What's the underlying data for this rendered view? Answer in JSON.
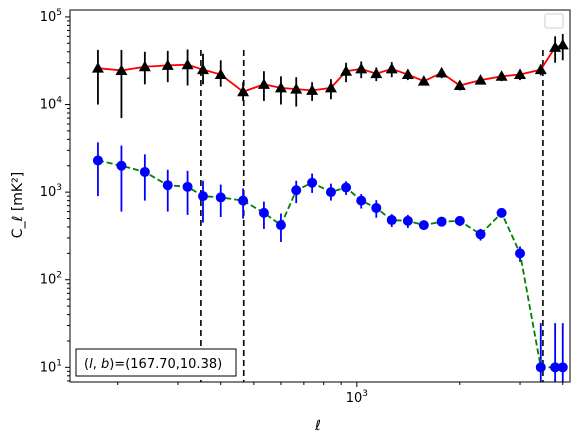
{
  "chart_data": {
    "type": "line",
    "title": "",
    "xlabel": "ℓ",
    "ylabel": "C_ℓ [mK²]",
    "xscale": "log",
    "yscale": "log",
    "xlim": [
      145,
      4200
    ],
    "ylim": [
      6.8,
      120000
    ],
    "x_tick_labels": [
      {
        "value": 1000,
        "base": "10",
        "exp": "3"
      }
    ],
    "y_tick_labels": [
      {
        "value": 10,
        "base": "10",
        "exp": "1"
      },
      {
        "value": 100,
        "base": "10",
        "exp": "2"
      },
      {
        "value": 1000,
        "base": "10",
        "exp": "3"
      },
      {
        "value": 10000,
        "base": "10",
        "exp": "4"
      },
      {
        "value": 100000,
        "base": "10",
        "exp": "5"
      }
    ],
    "vertical_lines": [
      350,
      467,
      3500
    ],
    "grid": false,
    "legend": "top-right (empty)",
    "annotation": "(l, b)=(167.70,10.38)",
    "series": [
      {
        "marker": "triangle",
        "color": "#d62728",
        "line_color": "#ff0000",
        "marker_color": "#000000",
        "error_color": "#000000",
        "linestyle": "solid",
        "x": [
          175,
          205,
          240,
          280,
          320,
          355,
          400,
          465,
          535,
          600,
          665,
          740,
          840,
          930,
          1030,
          1140,
          1265,
          1410,
          1570,
          1770,
          2000,
          2300,
          2650,
          3000,
          3450,
          3800,
          4000
        ],
        "y": [
          26000,
          24500,
          27000,
          28000,
          28500,
          25000,
          22000,
          14000,
          17000,
          15500,
          15000,
          14500,
          15500,
          24000,
          25500,
          22500,
          25500,
          22000,
          18500,
          23000,
          16500,
          19000,
          21000,
          22000,
          25000,
          45000,
          48000
        ],
        "y_err_low": [
          16000,
          17500,
          10000,
          10000,
          12000,
          8000,
          6000,
          3000,
          6000,
          5500,
          5500,
          3500,
          4000,
          6000,
          5500,
          4000,
          5000,
          3000,
          2000,
          3000,
          2000,
          2000,
          2500,
          3000,
          3500,
          15000,
          16000
        ],
        "y_err_high": [
          16000,
          17500,
          13000,
          13000,
          14000,
          13000,
          10000,
          4000,
          7000,
          5500,
          5500,
          3500,
          4000,
          6000,
          5500,
          4000,
          5000,
          3000,
          2000,
          3000,
          2000,
          2000,
          2500,
          3000,
          3500,
          15000,
          16000
        ]
      },
      {
        "marker": "circle",
        "line_color": "#008000",
        "marker_color": "#0000ff",
        "error_color": "#0000ff",
        "linestyle": "dashed",
        "x": [
          175,
          205,
          240,
          280,
          320,
          355,
          400,
          465,
          535,
          600,
          665,
          740,
          840,
          930,
          1030,
          1140,
          1265,
          1410,
          1570,
          1770,
          2000,
          2300,
          2650,
          3000,
          3450,
          3800,
          4000
        ],
        "y": [
          2300,
          2000,
          1700,
          1200,
          1150,
          900,
          870,
          800,
          580,
          420,
          1050,
          1280,
          1000,
          1130,
          800,
          660,
          480,
          470,
          420,
          460,
          470,
          330,
          580,
          200,
          10,
          10,
          10
        ],
        "y_err_low": [
          1400,
          1400,
          900,
          600,
          600,
          450,
          350,
          300,
          200,
          150,
          300,
          300,
          200,
          200,
          150,
          150,
          80,
          80,
          50,
          50,
          60,
          50,
          50,
          40,
          8,
          8,
          8
        ],
        "y_err_high": [
          1400,
          1400,
          1000,
          600,
          600,
          450,
          350,
          300,
          200,
          150,
          300,
          350,
          250,
          200,
          150,
          150,
          80,
          80,
          50,
          50,
          60,
          50,
          50,
          40,
          22,
          22,
          22
        ]
      }
    ]
  }
}
